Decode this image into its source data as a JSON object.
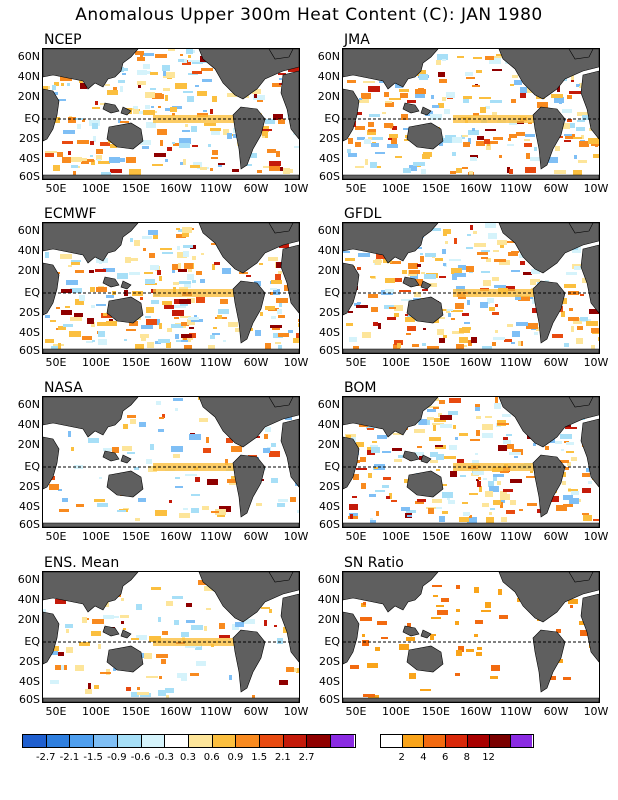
{
  "title": "Anomalous Upper 300m Heat Content (C): JAN 1980",
  "lat_labels": [
    "60N",
    "40N",
    "20N",
    "EQ",
    "20S",
    "40S",
    "60S"
  ],
  "lon_labels": [
    "50E",
    "100E",
    "150E",
    "160W",
    "110W",
    "60W",
    "10W"
  ],
  "panels": [
    {
      "label": "NCEP"
    },
    {
      "label": "JMA"
    },
    {
      "label": "ECMWF"
    },
    {
      "label": "GFDL"
    },
    {
      "label": "NASA"
    },
    {
      "label": "BOM"
    },
    {
      "label": "ENS. Mean"
    },
    {
      "label": "SN Ratio"
    }
  ],
  "anomaly_colorbar": {
    "colors": [
      "#1f5fcf",
      "#2f7fdf",
      "#4f9fef",
      "#7fbff5",
      "#a7dff7",
      "#d5f3fb",
      "#ffffff",
      "#fde59a",
      "#fbbf3f",
      "#f88a1f",
      "#e84a10",
      "#c41a0a",
      "#8f0000",
      "#8a2be2"
    ],
    "ticks": [
      "-2.7",
      "-2.1",
      "-1.5",
      "-0.9",
      "-0.6",
      "-0.3",
      "0.3",
      "0.6",
      "0.9",
      "1.5",
      "2.1",
      "2.7"
    ]
  },
  "sn_colorbar": {
    "colors": [
      "#ffffff",
      "#f9a41a",
      "#f26a10",
      "#d9280a",
      "#a80000",
      "#7a0000",
      "#8a2be2"
    ],
    "ticks": [
      "2",
      "4",
      "6",
      "8",
      "12"
    ]
  },
  "colors": {
    "land": "#5f5f5f",
    "equator_line": "#000000"
  }
}
